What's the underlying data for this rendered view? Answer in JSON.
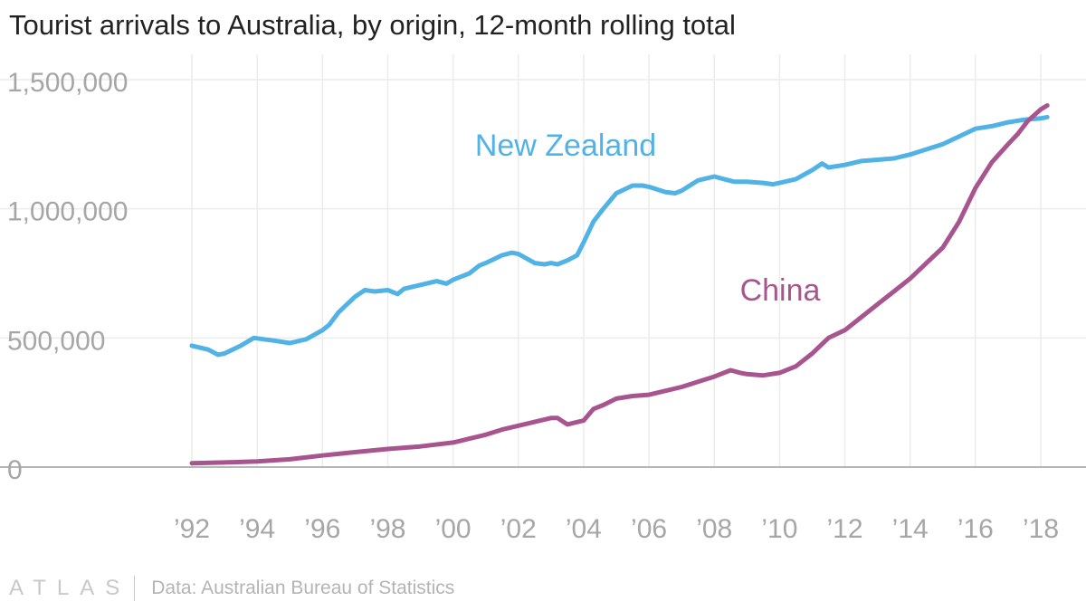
{
  "chart_data": {
    "type": "line",
    "title": "Tourist arrivals to Australia, by origin, 12-month rolling total",
    "xlabel": "",
    "ylabel": "",
    "xlim": [
      1992,
      2018.2
    ],
    "ylim": [
      0,
      1500000
    ],
    "y_ticks": [
      0,
      500000,
      1000000,
      1500000
    ],
    "y_tick_labels": [
      "0",
      "500,000",
      "1,000,000",
      "1,500,000"
    ],
    "x_ticks": [
      1992,
      1994,
      1996,
      1998,
      2000,
      2002,
      2004,
      2006,
      2008,
      2010,
      2012,
      2014,
      2016,
      2018
    ],
    "x_tick_labels": [
      "’92",
      "’94",
      "’96",
      "’98",
      "’00",
      "’02",
      "’04",
      "’06",
      "’08",
      "’10",
      "’12",
      "’14",
      "’16",
      "’18"
    ],
    "grid": true,
    "series": [
      {
        "name": "New Zealand",
        "color": "#51b2e5",
        "x": [
          1992,
          1992.5,
          1992.8,
          1993,
          1993.5,
          1993.9,
          1994.2,
          1994.5,
          1995,
          1995.5,
          1996,
          1996.2,
          1996.5,
          1997,
          1997.3,
          1997.6,
          1998,
          1998.3,
          1998.5,
          1999,
          1999.5,
          1999.8,
          2000,
          2000.5,
          2000.8,
          2001,
          2001.5,
          2001.8,
          2002,
          2002.5,
          2002.8,
          2003,
          2003.2,
          2003.5,
          2003.8,
          2004,
          2004.3,
          2004.6,
          2005,
          2005.5,
          2005.8,
          2006,
          2006.5,
          2006.8,
          2007,
          2007.5,
          2008,
          2008.3,
          2008.6,
          2009,
          2009.5,
          2009.8,
          2010,
          2010.5,
          2011,
          2011.3,
          2011.5,
          2012,
          2012.5,
          2013,
          2013.5,
          2014,
          2014.5,
          2015,
          2015.5,
          2016,
          2016.5,
          2017,
          2017.5,
          2018,
          2018.2
        ],
        "values": [
          470000,
          455000,
          435000,
          440000,
          470000,
          500000,
          495000,
          490000,
          480000,
          495000,
          530000,
          550000,
          600000,
          660000,
          685000,
          680000,
          685000,
          670000,
          690000,
          705000,
          720000,
          710000,
          725000,
          750000,
          780000,
          790000,
          820000,
          830000,
          825000,
          790000,
          785000,
          790000,
          785000,
          800000,
          820000,
          870000,
          950000,
          1000000,
          1060000,
          1090000,
          1090000,
          1085000,
          1065000,
          1060000,
          1070000,
          1110000,
          1125000,
          1115000,
          1105000,
          1105000,
          1100000,
          1095000,
          1100000,
          1115000,
          1150000,
          1175000,
          1160000,
          1170000,
          1185000,
          1190000,
          1195000,
          1210000,
          1230000,
          1250000,
          1280000,
          1310000,
          1320000,
          1335000,
          1345000,
          1350000,
          1355000
        ]
      },
      {
        "name": "China",
        "color": "#a8558f",
        "x": [
          1992,
          1993,
          1994,
          1995,
          1996,
          1997,
          1998,
          1999,
          2000,
          2000.5,
          2001,
          2001.5,
          2002,
          2002.5,
          2003,
          2003.2,
          2003.5,
          2004,
          2004.3,
          2004.6,
          2005,
          2005.5,
          2006,
          2006.5,
          2007,
          2007.5,
          2008,
          2008.5,
          2008.8,
          2009,
          2009.5,
          2010,
          2010.5,
          2011,
          2011.5,
          2012,
          2012.5,
          2013,
          2013.5,
          2014,
          2014.5,
          2015,
          2015.5,
          2016,
          2016.5,
          2017,
          2017.3,
          2017.6,
          2018,
          2018.2
        ],
        "values": [
          15000,
          18000,
          22000,
          30000,
          45000,
          58000,
          70000,
          80000,
          95000,
          110000,
          125000,
          145000,
          160000,
          175000,
          190000,
          190000,
          165000,
          180000,
          225000,
          240000,
          265000,
          275000,
          280000,
          295000,
          310000,
          330000,
          350000,
          375000,
          365000,
          360000,
          355000,
          365000,
          390000,
          440000,
          500000,
          530000,
          580000,
          630000,
          680000,
          730000,
          790000,
          850000,
          950000,
          1080000,
          1180000,
          1250000,
          1290000,
          1340000,
          1385000,
          1400000
        ]
      }
    ],
    "annotations": [
      {
        "text": "New Zealand",
        "series": "New Zealand"
      },
      {
        "text": "China",
        "series": "China"
      }
    ]
  },
  "footer": {
    "brand": "ATLAS",
    "source": "Data: Australian Bureau of Statistics"
  }
}
